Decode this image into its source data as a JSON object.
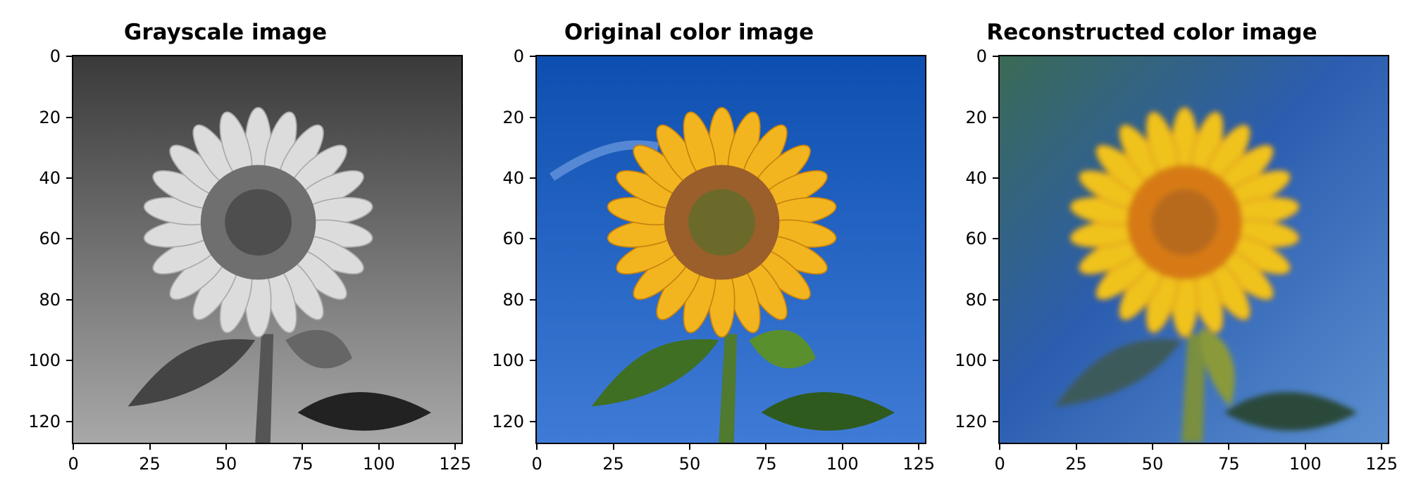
{
  "chart_data": [
    {
      "type": "image",
      "title": "Grayscale image",
      "xlabel": "",
      "ylabel": "",
      "xlim": [
        -0.5,
        127.5
      ],
      "ylim": [
        127.5,
        -0.5
      ],
      "xticks": [
        "0",
        "25",
        "50",
        "75",
        "100",
        "125"
      ],
      "yticks": [
        "0",
        "20",
        "40",
        "60",
        "80",
        "100",
        "120"
      ],
      "mode": "grayscale"
    },
    {
      "type": "image",
      "title": "Original color image",
      "xlabel": "",
      "ylabel": "",
      "xlim": [
        -0.5,
        127.5
      ],
      "ylim": [
        127.5,
        -0.5
      ],
      "xticks": [
        "0",
        "25",
        "50",
        "75",
        "100",
        "125"
      ],
      "yticks": [
        "0",
        "20",
        "40",
        "60",
        "80",
        "100",
        "120"
      ],
      "mode": "color"
    },
    {
      "type": "image",
      "title": "Reconstructed color image",
      "xlabel": "",
      "ylabel": "",
      "xlim": [
        -0.5,
        127.5
      ],
      "ylim": [
        127.5,
        -0.5
      ],
      "xticks": [
        "0",
        "25",
        "50",
        "75",
        "100",
        "125"
      ],
      "yticks": [
        "0",
        "20",
        "40",
        "60",
        "80",
        "100",
        "120"
      ],
      "mode": "reconstructed"
    }
  ],
  "colors": {
    "sky_blue": "#1f5fbf",
    "petal_yellow": "#f2b51f",
    "center_brown": "#8a5a2e",
    "leaf_green": "#3f7a2a",
    "gray_sky": "#5a5a5a",
    "gray_petal": "#d8d8d8"
  }
}
